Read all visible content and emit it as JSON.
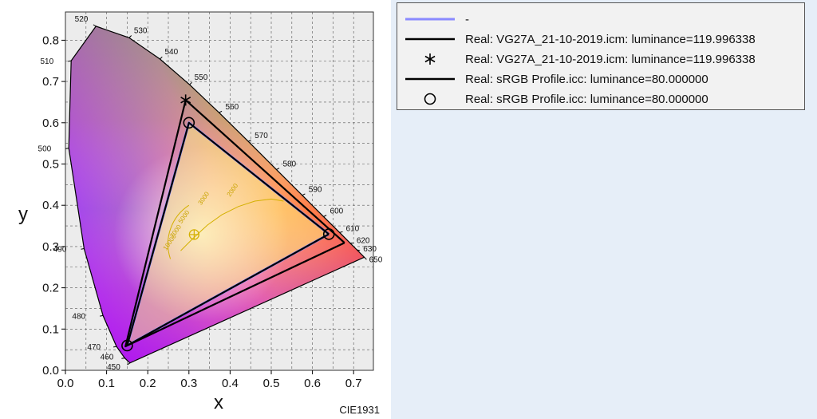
{
  "chart_data": {
    "type": "scatter",
    "xlabel": "x",
    "ylabel": "y",
    "standard_label": "CIE1931",
    "xlim": [
      0.0,
      0.75
    ],
    "ylim": [
      0.0,
      0.85
    ],
    "x_ticks": [
      "0.0",
      "0.1",
      "0.2",
      "0.3",
      "0.4",
      "0.5",
      "0.6",
      "0.7"
    ],
    "y_ticks": [
      "0.0",
      "0.1",
      "0.2",
      "0.3",
      "0.4",
      "0.5",
      "0.6",
      "0.7",
      "0.8"
    ],
    "grid": true,
    "legend_position": "right",
    "spectral_locus": [
      {
        "wl": "450",
        "x": 0.1566,
        "y": 0.0177
      },
      {
        "wl": "460",
        "x": 0.144,
        "y": 0.0297
      },
      {
        "wl": "470",
        "x": 0.1241,
        "y": 0.0578
      },
      {
        "wl": "480",
        "x": 0.0913,
        "y": 0.1327
      },
      {
        "wl": "490",
        "x": 0.0454,
        "y": 0.295
      },
      {
        "wl": "500",
        "x": 0.0082,
        "y": 0.5384
      },
      {
        "wl": "510",
        "x": 0.0139,
        "y": 0.7502
      },
      {
        "wl": "520",
        "x": 0.0743,
        "y": 0.8338
      },
      {
        "wl": "530",
        "x": 0.1547,
        "y": 0.8059
      },
      {
        "wl": "540",
        "x": 0.2296,
        "y": 0.7543
      },
      {
        "wl": "550",
        "x": 0.3016,
        "y": 0.6923
      },
      {
        "wl": "560",
        "x": 0.3731,
        "y": 0.6245
      },
      {
        "wl": "570",
        "x": 0.4441,
        "y": 0.5547
      },
      {
        "wl": "580",
        "x": 0.5125,
        "y": 0.4866
      },
      {
        "wl": "590",
        "x": 0.5752,
        "y": 0.4242
      },
      {
        "wl": "600",
        "x": 0.627,
        "y": 0.3725
      },
      {
        "wl": "610",
        "x": 0.6658,
        "y": 0.334
      },
      {
        "wl": "620",
        "x": 0.6915,
        "y": 0.3083
      },
      {
        "wl": "630",
        "x": 0.7079,
        "y": 0.292
      },
      {
        "wl": "650",
        "x": 0.726,
        "y": 0.274
      }
    ],
    "series": [
      {
        "name": "-",
        "style": "line",
        "color": "#8a8aff",
        "x": [
          0.64,
          0.3,
          0.15,
          0.64
        ],
        "y": [
          0.33,
          0.6,
          0.06,
          0.33
        ]
      },
      {
        "name": "Real: VG27A_21-10-2019.icm: luminance=119.996338",
        "style": "line",
        "color": "#000000",
        "x": [
          0.678,
          0.292,
          0.146,
          0.678
        ],
        "y": [
          0.309,
          0.655,
          0.058,
          0.309
        ]
      },
      {
        "name": "Real: VG27A_21-10-2019.icm: luminance=119.996338",
        "style": "marker-asterisk",
        "color": "#000000",
        "x": [
          0.292
        ],
        "y": [
          0.655
        ]
      },
      {
        "name": "Real: sRGB Profile.icc: luminance=80.000000",
        "style": "line",
        "color": "#000000",
        "x": [
          0.64,
          0.3,
          0.15,
          0.64
        ],
        "y": [
          0.33,
          0.6,
          0.06,
          0.33
        ]
      },
      {
        "name": "Real: sRGB Profile.icc: luminance=80.000000",
        "style": "marker-circle",
        "color": "#000000",
        "x": [
          0.64,
          0.3,
          0.15
        ],
        "y": [
          0.33,
          0.6,
          0.06
        ]
      }
    ],
    "white_point": {
      "x": 0.3127,
      "y": 0.329
    },
    "cct_labels": [
      "10000",
      "7000",
      "5000",
      "3000",
      "2000"
    ]
  }
}
